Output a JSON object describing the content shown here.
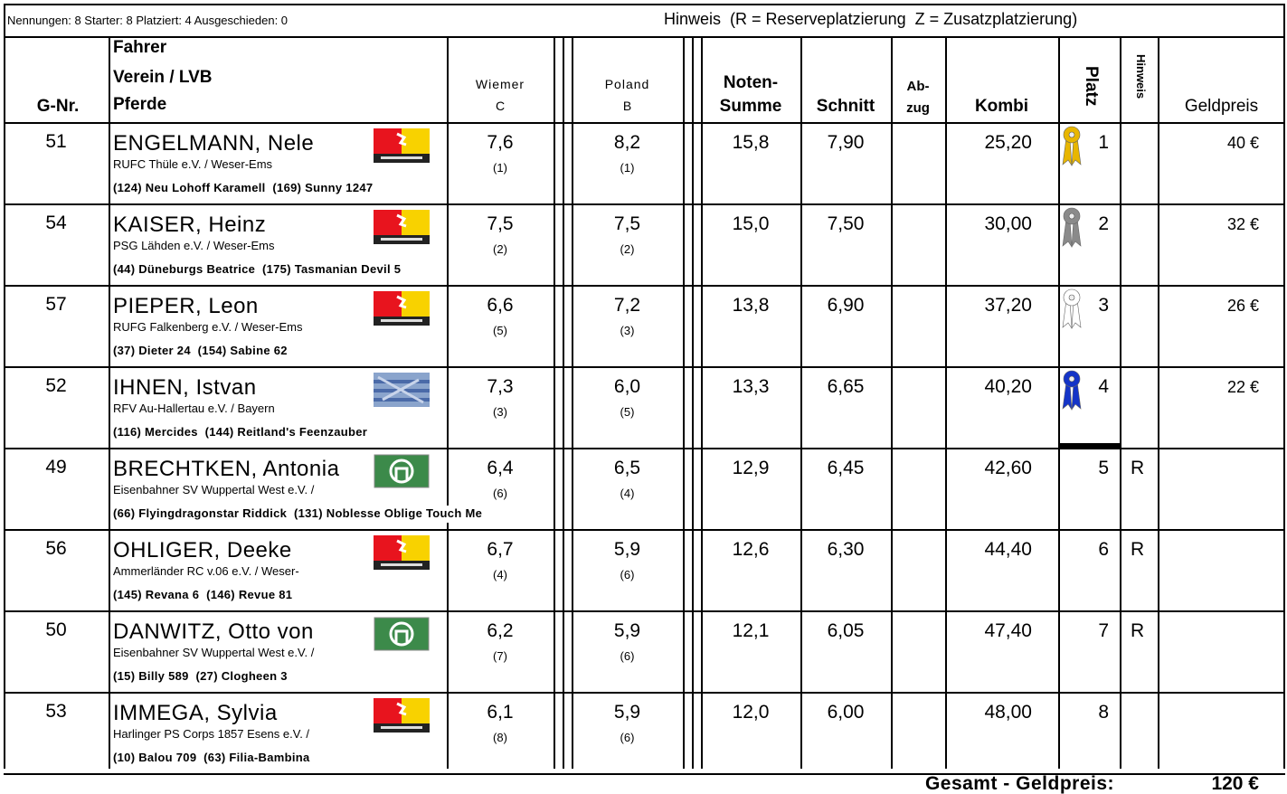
{
  "header": {
    "info": "Nennungen: 8 Starter: 8 Platziert: 4 Ausgeschieden: 0",
    "note": "Hinweis  (R = Reserveplatzierung  Z = Zusatzplatzierung)"
  },
  "columns": {
    "gnr": "G-Nr.",
    "driver": "Fahrer",
    "club": "Verein / LVB",
    "horses": "Pferde",
    "judges": [
      {
        "name": "Wiemer",
        "pos": "C"
      },
      {
        "name": "Poland",
        "pos": "B"
      }
    ],
    "sum": [
      "Noten-",
      "Summe"
    ],
    "avg": "Schnitt",
    "deduction": [
      "Ab-",
      "zug"
    ],
    "kombi": "Kombi",
    "place": "Platz",
    "hint": "Hinweis",
    "prize": "Geldpreis"
  },
  "rows": [
    {
      "gnr": "51",
      "name": "ENGELMANN, Nele",
      "club": "RUFC Thüle e.V. / Weser-Ems",
      "horses": "(124) Neu Lohoff Karamell  (169) Sunny 1247",
      "wiemer": "7,6",
      "wiemer_rank": "(1)",
      "poland": "8,2",
      "poland_rank": "(1)",
      "sum": "15,8",
      "avg": "7,90",
      "kombi": "25,20",
      "place": "1",
      "prize": "40 €"
    },
    {
      "gnr": "54",
      "name": "KAISER, Heinz",
      "club": "PSG Lähden e.V. / Weser-Ems",
      "horses": "(44) Düneburgs Beatrice  (175) Tasmanian Devil 5",
      "wiemer": "7,5",
      "wiemer_rank": "(2)",
      "poland": "7,5",
      "poland_rank": "(2)",
      "sum": "15,0",
      "avg": "7,50",
      "kombi": "30,00",
      "place": "2",
      "prize": "32 €"
    },
    {
      "gnr": "57",
      "name": "PIEPER, Leon",
      "club": "RUFG Falkenberg e.V. / Weser-Ems",
      "horses": "(37) Dieter 24  (154) Sabine 62",
      "wiemer": "6,6",
      "wiemer_rank": "(5)",
      "poland": "7,2",
      "poland_rank": "(3)",
      "sum": "13,8",
      "avg": "6,90",
      "kombi": "37,20",
      "place": "3",
      "prize": "26 €"
    },
    {
      "gnr": "52",
      "name": "IHNEN, Istvan",
      "club": "RFV Au-Hallertau e.V. / Bayern",
      "horses": "(116) Mercides  (144) Reitland's Feenzauber",
      "wiemer": "7,3",
      "wiemer_rank": "(3)",
      "poland": "6,0",
      "poland_rank": "(5)",
      "sum": "13,3",
      "avg": "6,65",
      "kombi": "40,20",
      "place": "4",
      "prize": "22 €"
    },
    {
      "gnr": "49",
      "name": "BRECHTKEN, Antonia",
      "club": "Eisenbahner SV Wuppertal West e.V. /",
      "horses": "(66) Flyingdragonstar Riddick  (131) Noblesse Oblige Touch Me",
      "wiemer": "6,4",
      "wiemer_rank": "(6)",
      "poland": "6,5",
      "poland_rank": "(4)",
      "sum": "12,9",
      "avg": "6,45",
      "kombi": "42,60",
      "place": "5",
      "hint": "R"
    },
    {
      "gnr": "56",
      "name": "OHLIGER, Deeke",
      "club": "Ammerländer RC v.06 e.V. / Weser-",
      "horses": "(145) Revana 6  (146) Revue 81",
      "wiemer": "6,7",
      "wiemer_rank": "(4)",
      "poland": "5,9",
      "poland_rank": "(6)",
      "sum": "12,6",
      "avg": "6,30",
      "kombi": "44,40",
      "place": "6",
      "hint": "R"
    },
    {
      "gnr": "50",
      "name": "DANWITZ, Otto von",
      "club": "Eisenbahner SV Wuppertal West e.V. /",
      "horses": "(15) Billy 589  (27) Clogheen 3",
      "wiemer": "6,2",
      "wiemer_rank": "(7)",
      "poland": "5,9",
      "poland_rank": "(6)",
      "sum": "12,1",
      "avg": "6,05",
      "kombi": "47,40",
      "place": "7",
      "hint": "R"
    },
    {
      "gnr": "53",
      "name": "IMMEGA, Sylvia",
      "club": "Harlinger PS Corps 1857 Esens e.V. /",
      "horses": "(10) Balou 709  (63) Filia-Bambina",
      "wiemer": "6,1",
      "wiemer_rank": "(8)",
      "poland": "5,9",
      "poland_rank": "(6)",
      "sum": "12,0",
      "avg": "6,00",
      "kombi": "48,00",
      "place": "8"
    }
  ],
  "total": {
    "label": "Gesamt - Geldpreis:",
    "value": "120 €"
  }
}
